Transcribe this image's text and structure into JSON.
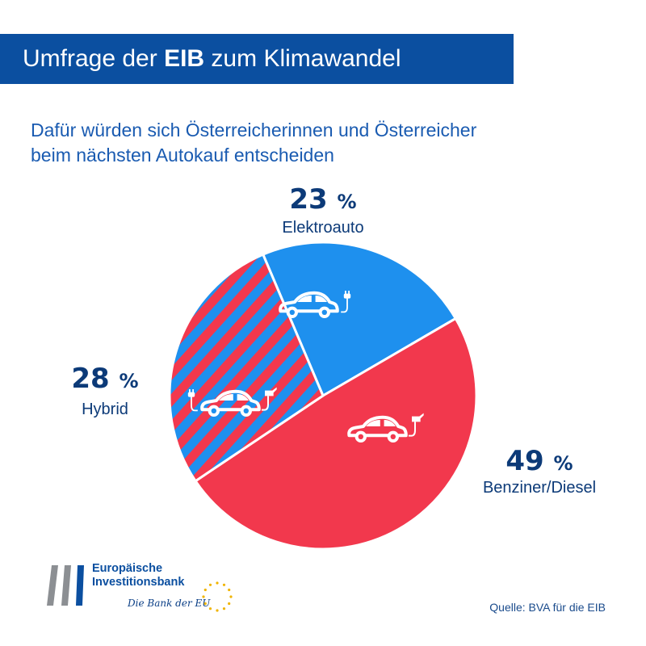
{
  "header": {
    "title_pre": "Umfrage der ",
    "title_bold": "EIB",
    "title_post": " zum Klimawandel"
  },
  "subtitle_line1": "Dafür würden sich Österreicherinnen und Österreicher",
  "subtitle_line2": "beim nächsten Autokauf entscheiden",
  "chart_data": {
    "type": "pie",
    "title": "",
    "slices": [
      {
        "label": "Elektroauto",
        "value": 23,
        "value_text": "23",
        "color": "#1e90ee",
        "icon": "electric-car-icon"
      },
      {
        "label": "Benziner/Diesel",
        "value": 49,
        "value_text": "49",
        "color": "#f2384d",
        "icon": "fuel-car-icon"
      },
      {
        "label": "Hybrid",
        "value": 28,
        "value_text": "28",
        "color": "#1e90ee",
        "stripe_color": "#f2384d",
        "icon": "hybrid-car-icon"
      }
    ],
    "unit": "%"
  },
  "logo": {
    "line1": "Europäische",
    "line2": "Investitionsbank",
    "tagline": "Die Bank der EU"
  },
  "source": "Quelle: BVA für die EIB"
}
